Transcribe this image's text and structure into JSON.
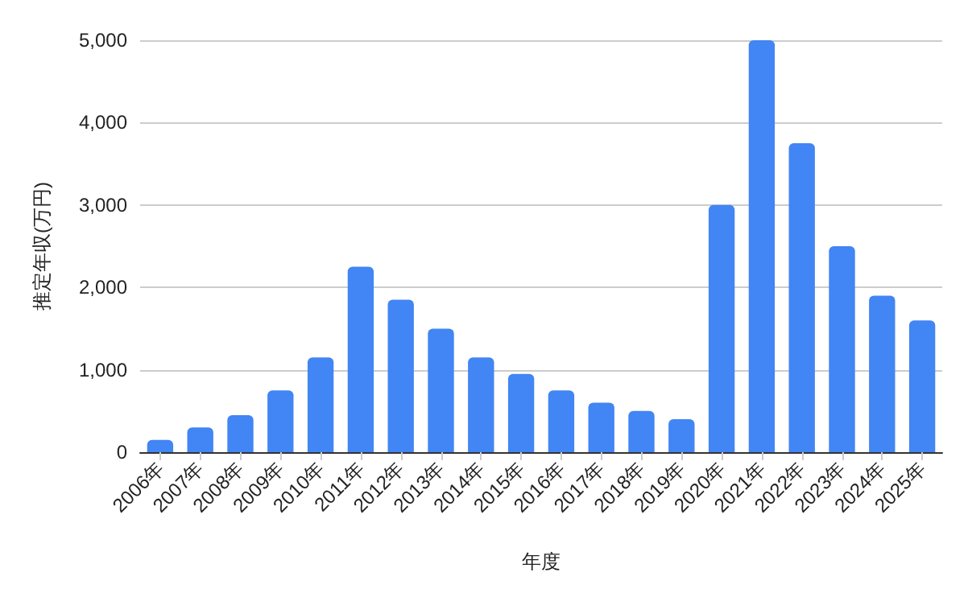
{
  "chart_data": {
    "type": "bar",
    "xlabel": "年度",
    "ylabel": "推定年収(万円)",
    "categories": [
      "2006年",
      "2007年",
      "2008年",
      "2009年",
      "2010年",
      "2011年",
      "2012年",
      "2013年",
      "2014年",
      "2015年",
      "2016年",
      "2017年",
      "2018年",
      "2019年",
      "2020年",
      "2021年",
      "2022年",
      "2023年",
      "2024年",
      "2025年"
    ],
    "values": [
      150,
      300,
      450,
      750,
      1150,
      2250,
      1850,
      1500,
      1150,
      950,
      750,
      600,
      500,
      400,
      3000,
      5000,
      3750,
      2500,
      1900,
      1600
    ],
    "color": "#4285f4",
    "ylim": [
      0,
      5000
    ],
    "yticks": [
      0,
      {
        "value": 1000,
        "label": "1,000"
      },
      {
        "value": 2000,
        "label": "2,000"
      },
      {
        "value": 3000,
        "label": "3,000"
      },
      {
        "value": 4000,
        "label": "4,000"
      },
      {
        "value": 5000,
        "label": "5,000"
      }
    ],
    "grid": "y"
  }
}
